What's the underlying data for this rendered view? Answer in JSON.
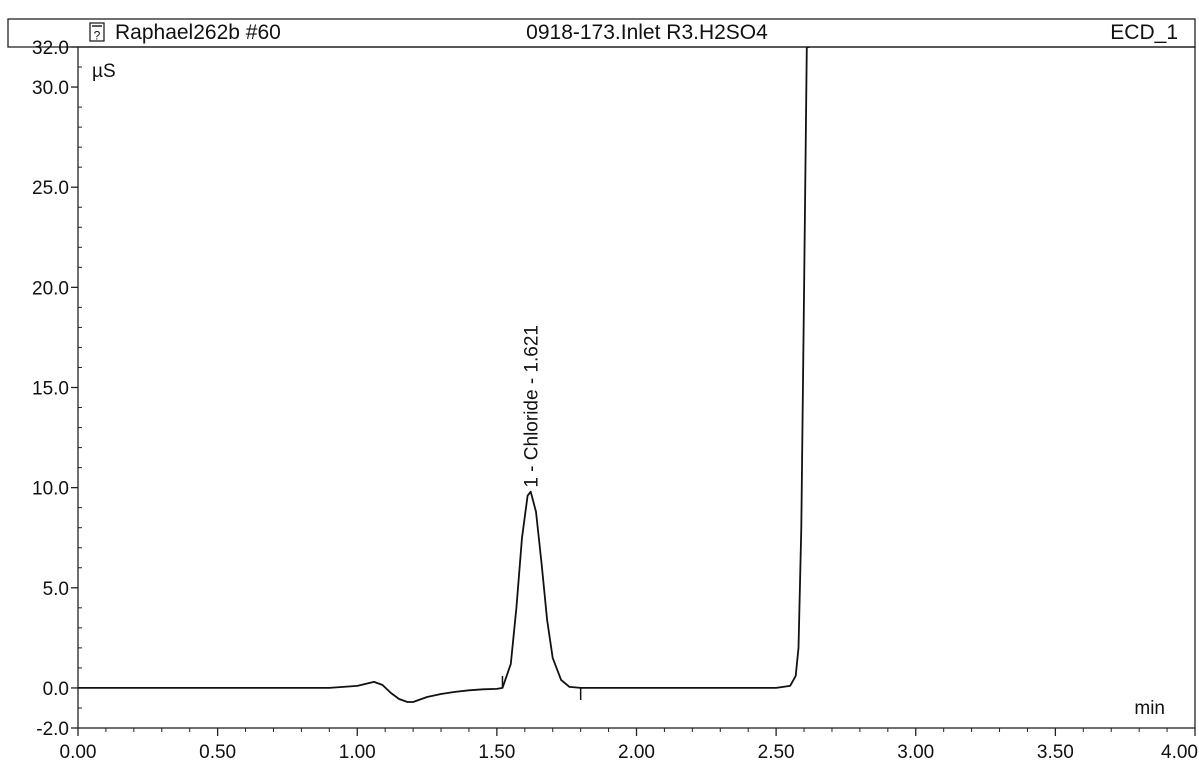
{
  "header": {
    "sample": "Raphael262b #60",
    "method": "0918-173.Inlet R3.H2SO4",
    "channel": "ECD_1",
    "icon": "question-document-icon"
  },
  "chart_data": {
    "type": "line",
    "title": "",
    "xlabel": "min",
    "ylabel": "µS",
    "xlim": [
      0.0,
      4.0
    ],
    "ylim": [
      -2.0,
      32.0
    ],
    "xticks": [
      "0.00",
      "0.50",
      "1.00",
      "1.50",
      "2.00",
      "2.50",
      "3.00",
      "3.50",
      "4.00"
    ],
    "yticks": [
      "-2.0",
      "0.0",
      "5.0",
      "10.0",
      "15.0",
      "20.0",
      "25.0",
      "30.0",
      "32.0"
    ],
    "series": [
      {
        "x": [
          0.0,
          0.3,
          0.6,
          0.9,
          0.95,
          1.0,
          1.03,
          1.06,
          1.09,
          1.12,
          1.15,
          1.18,
          1.2,
          1.22,
          1.25,
          1.3,
          1.35,
          1.4,
          1.45,
          1.5,
          1.52,
          1.55,
          1.57,
          1.59,
          1.61,
          1.621,
          1.64,
          1.66,
          1.68,
          1.7,
          1.73,
          1.76,
          1.8,
          2.0,
          2.3,
          2.5,
          2.55,
          2.57,
          2.58,
          2.59,
          2.6,
          2.61,
          2.62
        ],
        "y": [
          0.0,
          0.0,
          0.0,
          0.0,
          0.05,
          0.1,
          0.2,
          0.3,
          0.15,
          -0.25,
          -0.55,
          -0.7,
          -0.7,
          -0.6,
          -0.45,
          -0.3,
          -0.2,
          -0.12,
          -0.07,
          -0.05,
          0.0,
          1.2,
          4.0,
          7.5,
          9.6,
          9.8,
          8.8,
          6.2,
          3.4,
          1.5,
          0.4,
          0.05,
          0.0,
          0.0,
          0.0,
          0.0,
          0.1,
          0.6,
          2.0,
          8.0,
          20.0,
          32.0,
          32.0
        ]
      }
    ],
    "peaks": [
      {
        "label": "1 - Chloride - 1.621",
        "x": 1.621,
        "y": 9.8
      }
    ],
    "integration_marks": [
      {
        "x": 1.52,
        "side": "above"
      },
      {
        "x": 1.8,
        "side": "below"
      }
    ],
    "grid": false
  }
}
